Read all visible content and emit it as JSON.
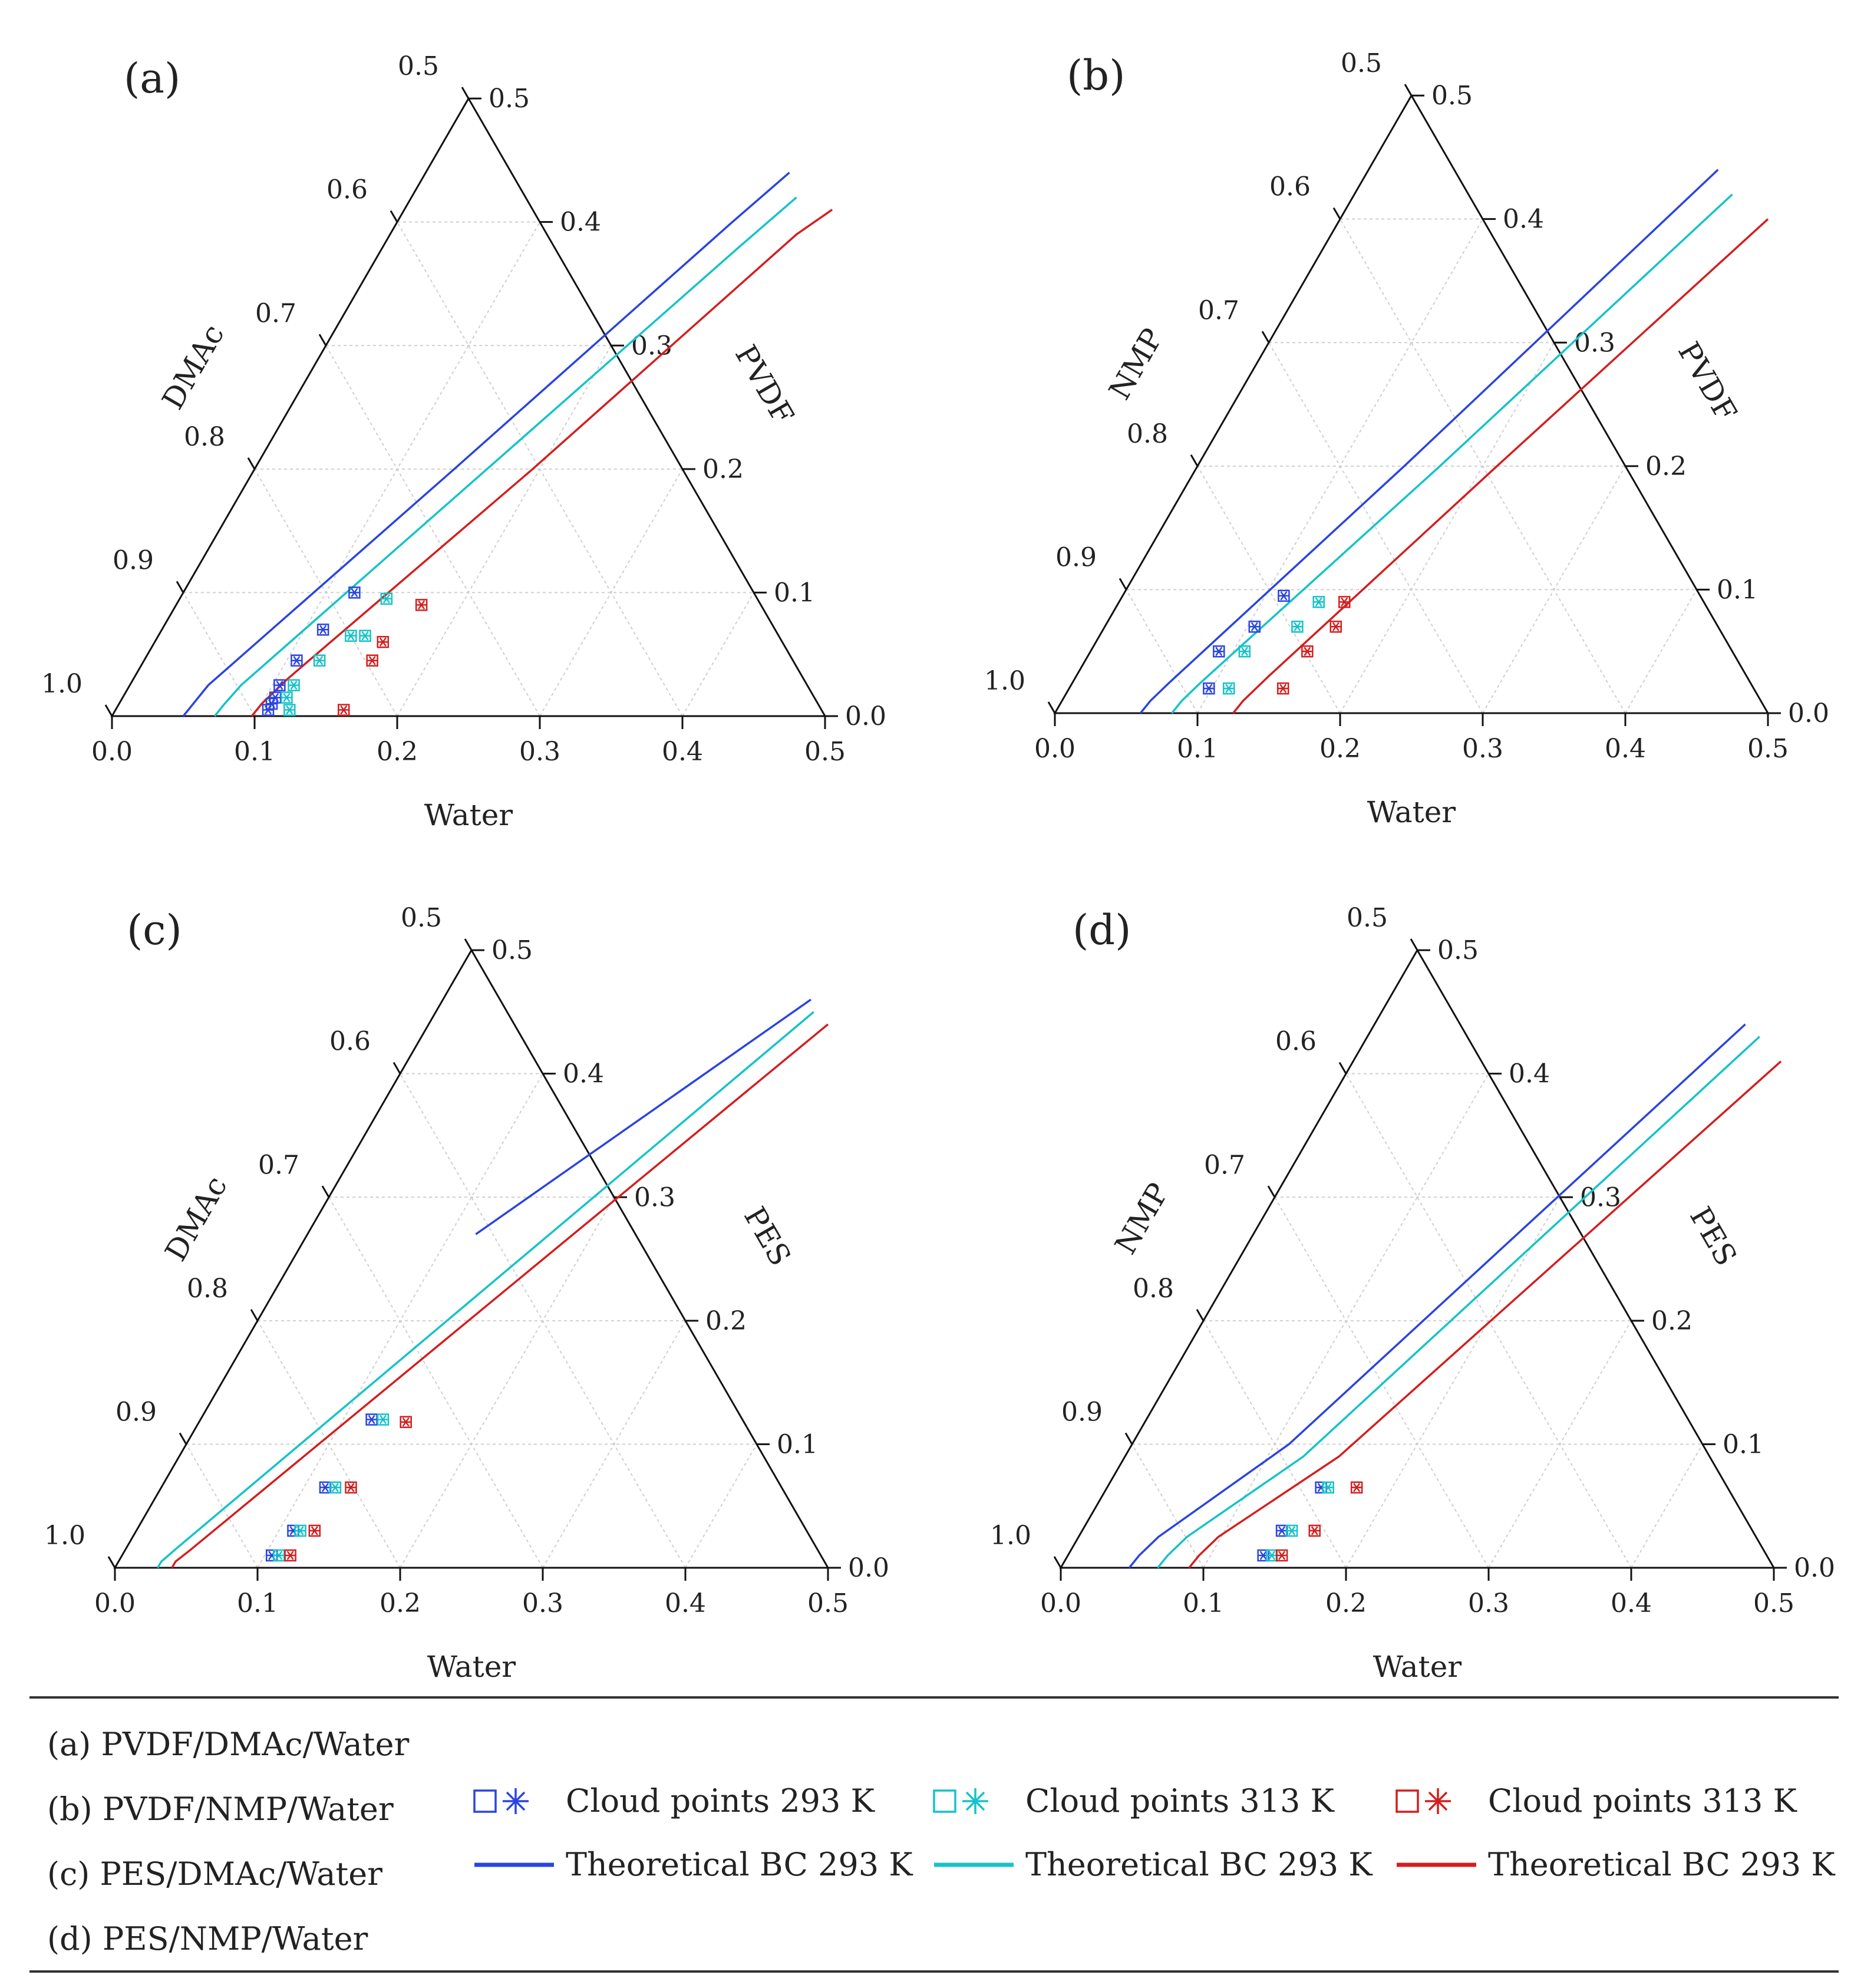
{
  "chart_data": [
    {
      "type": "ternary",
      "panel_label": "(a)",
      "components": {
        "bottom": "Water",
        "left": "DMAc",
        "right": "PVDF"
      },
      "bottom_ticks": [
        "0.0",
        "0.1",
        "0.2",
        "0.3",
        "0.4",
        "0.5"
      ],
      "left_ticks": [
        "1.0",
        "0.9",
        "0.8",
        "0.7",
        "0.6",
        "0.5"
      ],
      "right_ticks": [
        "0.0",
        "0.1",
        "0.2",
        "0.3",
        "0.4",
        "0.5"
      ],
      "series": [
        {
          "name": "Theoretical BC 293 K",
          "color": "#2a44e0",
          "kind": "line",
          "points": [
            [
              0.05,
              0.0
            ],
            [
              0.052,
              0.01
            ],
            [
              0.055,
              0.025
            ],
            [
              0.14,
              0.2
            ],
            [
              0.235,
              0.4
            ],
            [
              0.255,
              0.44
            ]
          ]
        },
        {
          "name": "Theoretical BC 293 K",
          "color": "#14c3c8",
          "kind": "line",
          "points": [
            [
              0.072,
              0.0
            ],
            [
              0.074,
              0.01
            ],
            [
              0.078,
              0.025
            ],
            [
              0.163,
              0.2
            ],
            [
              0.25,
              0.38
            ],
            [
              0.27,
              0.42
            ]
          ]
        },
        {
          "name": "Theoretical BC 293 K",
          "color": "#d41e1e",
          "kind": "line",
          "points": [
            [
              0.098,
              0.0
            ],
            [
              0.1,
              0.01
            ],
            [
              0.108,
              0.03
            ],
            [
              0.195,
              0.2
            ],
            [
              0.285,
              0.39
            ],
            [
              0.3,
              0.41
            ]
          ]
        },
        {
          "name": "Cloud points 293 K",
          "color": "#2a44e0",
          "kind": "points",
          "points": [
            [
              0.107,
              0.005
            ],
            [
              0.107,
              0.01
            ],
            [
              0.107,
              0.015
            ],
            [
              0.105,
              0.025
            ],
            [
              0.107,
              0.045
            ],
            [
              0.113,
              0.07
            ],
            [
              0.12,
              0.1
            ]
          ]
        },
        {
          "name": "Cloud points 313 K",
          "color": "#14c3c8",
          "kind": "points",
          "points": [
            [
              0.122,
              0.005
            ],
            [
              0.115,
              0.015
            ],
            [
              0.115,
              0.025
            ],
            [
              0.123,
              0.045
            ],
            [
              0.135,
              0.065
            ],
            [
              0.145,
              0.065
            ],
            [
              0.145,
              0.095
            ]
          ]
        },
        {
          "name": "Cloud points 313 K",
          "color": "#d41e1e",
          "kind": "points",
          "points": [
            [
              0.16,
              0.005
            ],
            [
              0.16,
              0.045
            ],
            [
              0.16,
              0.06
            ],
            [
              0.172,
              0.09
            ]
          ]
        }
      ]
    },
    {
      "type": "ternary",
      "panel_label": "(b)",
      "components": {
        "bottom": "Water",
        "left": "NMP",
        "right": "PVDF"
      },
      "bottom_ticks": [
        "0.0",
        "0.1",
        "0.2",
        "0.3",
        "0.4",
        "0.5"
      ],
      "left_ticks": [
        "1.0",
        "0.9",
        "0.8",
        "0.7",
        "0.6",
        "0.5"
      ],
      "right_ticks": [
        "0.0",
        "0.1",
        "0.2",
        "0.3",
        "0.4",
        "0.5"
      ],
      "series": [
        {
          "name": "Theoretical BC 293 K",
          "color": "#2a44e0",
          "kind": "line",
          "points": [
            [
              0.06,
              0.0
            ],
            [
              0.062,
              0.01
            ],
            [
              0.068,
              0.025
            ],
            [
              0.145,
              0.2
            ],
            [
              0.245,
              0.44
            ]
          ]
        },
        {
          "name": "Theoretical BC 293 K",
          "color": "#14c3c8",
          "kind": "line",
          "points": [
            [
              0.082,
              0.0
            ],
            [
              0.084,
              0.01
            ],
            [
              0.09,
              0.025
            ],
            [
              0.17,
              0.2
            ],
            [
              0.265,
              0.42
            ]
          ]
        },
        {
          "name": "Theoretical BC 293 K",
          "color": "#d41e1e",
          "kind": "line",
          "points": [
            [
              0.125,
              0.0
            ],
            [
              0.127,
              0.01
            ],
            [
              0.135,
              0.03
            ],
            [
              0.21,
              0.2
            ],
            [
              0.3,
              0.4
            ]
          ]
        },
        {
          "name": "Cloud points 293 K",
          "color": "#2a44e0",
          "kind": "points",
          "points": [
            [
              0.098,
              0.02
            ],
            [
              0.09,
              0.05
            ],
            [
              0.105,
              0.07
            ],
            [
              0.113,
              0.095
            ]
          ]
        },
        {
          "name": "Cloud points 313 K",
          "color": "#14c3c8",
          "kind": "points",
          "points": [
            [
              0.112,
              0.02
            ],
            [
              0.108,
              0.05
            ],
            [
              0.135,
              0.07
            ],
            [
              0.14,
              0.09
            ]
          ]
        },
        {
          "name": "Cloud points 313 K",
          "color": "#d41e1e",
          "kind": "points",
          "points": [
            [
              0.15,
              0.02
            ],
            [
              0.152,
              0.05
            ],
            [
              0.162,
              0.07
            ],
            [
              0.158,
              0.09
            ]
          ]
        }
      ]
    },
    {
      "type": "ternary",
      "panel_label": "(c)",
      "components": {
        "bottom": "Water",
        "left": "DMAc",
        "right": "PES"
      },
      "bottom_ticks": [
        "0.0",
        "0.1",
        "0.2",
        "0.3",
        "0.4",
        "0.5"
      ],
      "left_ticks": [
        "1.0",
        "0.9",
        "0.8",
        "0.7",
        "0.6",
        "0.5"
      ],
      "right_ticks": [
        "0.0",
        "0.1",
        "0.2",
        "0.3",
        "0.4",
        "0.5"
      ],
      "series": [
        {
          "name": "Theoretical BC 293 K",
          "color": "#2a44e0",
          "kind": "line",
          "points": [
            [
              0.118,
              0.27
            ],
            [
              0.258,
              0.46
            ]
          ]
        },
        {
          "name": "Theoretical BC 293 K",
          "color": "#14c3c8",
          "kind": "line",
          "points": [
            [
              0.03,
              0.0
            ],
            [
              0.03,
              0.005
            ],
            [
              0.035,
              0.015
            ],
            [
              0.265,
              0.45
            ]
          ]
        },
        {
          "name": "Theoretical BC 293 K",
          "color": "#d41e1e",
          "kind": "line",
          "points": [
            [
              0.04,
              0.0
            ],
            [
              0.04,
              0.005
            ],
            [
              0.046,
              0.015
            ],
            [
              0.28,
              0.44
            ]
          ]
        },
        {
          "name": "Cloud points 293 K",
          "color": "#2a44e0",
          "kind": "points",
          "points": [
            [
              0.105,
              0.01
            ],
            [
              0.11,
              0.03
            ],
            [
              0.115,
              0.065
            ],
            [
              0.12,
              0.12
            ]
          ]
        },
        {
          "name": "Cloud points 313 K",
          "color": "#14c3c8",
          "kind": "points",
          "points": [
            [
              0.11,
              0.01
            ],
            [
              0.115,
              0.03
            ],
            [
              0.122,
              0.065
            ],
            [
              0.128,
              0.12
            ]
          ]
        },
        {
          "name": "Cloud points 313 K",
          "color": "#d41e1e",
          "kind": "points",
          "points": [
            [
              0.118,
              0.01
            ],
            [
              0.125,
              0.03
            ],
            [
              0.133,
              0.065
            ],
            [
              0.145,
              0.118
            ]
          ]
        }
      ]
    },
    {
      "type": "ternary",
      "panel_label": "(d)",
      "components": {
        "bottom": "Water",
        "left": "NMP",
        "right": "PES"
      },
      "bottom_ticks": [
        "0.0",
        "0.1",
        "0.2",
        "0.3",
        "0.4",
        "0.5"
      ],
      "left_ticks": [
        "1.0",
        "0.9",
        "0.8",
        "0.7",
        "0.6",
        "0.5"
      ],
      "right_ticks": [
        "0.0",
        "0.1",
        "0.2",
        "0.3",
        "0.4",
        "0.5"
      ],
      "series": [
        {
          "name": "Theoretical BC 293 K",
          "color": "#2a44e0",
          "kind": "line",
          "points": [
            [
              0.048,
              0.0
            ],
            [
              0.05,
              0.01
            ],
            [
              0.056,
              0.025
            ],
            [
              0.11,
              0.1
            ],
            [
              0.26,
              0.44
            ]
          ]
        },
        {
          "name": "Theoretical BC 293 K",
          "color": "#14c3c8",
          "kind": "line",
          "points": [
            [
              0.068,
              0.0
            ],
            [
              0.07,
              0.01
            ],
            [
              0.076,
              0.025
            ],
            [
              0.125,
              0.09
            ],
            [
              0.275,
              0.43
            ]
          ]
        },
        {
          "name": "Theoretical BC 293 K",
          "color": "#d41e1e",
          "kind": "line",
          "points": [
            [
              0.09,
              0.0
            ],
            [
              0.092,
              0.01
            ],
            [
              0.098,
              0.025
            ],
            [
              0.15,
              0.09
            ],
            [
              0.3,
              0.41
            ]
          ]
        },
        {
          "name": "Cloud points 293 K",
          "color": "#2a44e0",
          "kind": "points",
          "points": [
            [
              0.137,
              0.01
            ],
            [
              0.14,
              0.03
            ],
            [
              0.15,
              0.065
            ]
          ]
        },
        {
          "name": "Cloud points 313 K",
          "color": "#14c3c8",
          "kind": "points",
          "points": [
            [
              0.143,
              0.01
            ],
            [
              0.147,
              0.03
            ],
            [
              0.155,
              0.065
            ]
          ]
        },
        {
          "name": "Cloud points 313 K",
          "color": "#d41e1e",
          "kind": "points",
          "points": [
            [
              0.15,
              0.01
            ],
            [
              0.163,
              0.03
            ],
            [
              0.175,
              0.065
            ]
          ]
        }
      ]
    }
  ],
  "legend": {
    "systems": [
      "(a) PVDF/DMAc/Water",
      "(b) PVDF/NMP/Water",
      "(c) PES/DMAc/Water",
      "(d) PES/NMP/Water"
    ],
    "entries": [
      {
        "kind": "markers",
        "color": "#2a44e0",
        "label": "Cloud points 293 K"
      },
      {
        "kind": "markers",
        "color": "#14c3c8",
        "label": "Cloud points 313 K"
      },
      {
        "kind": "markers",
        "color": "#d41e1e",
        "label": "Cloud points 313 K"
      },
      {
        "kind": "line",
        "color": "#2a44e0",
        "label": "Theoretical BC 293 K"
      },
      {
        "kind": "line",
        "color": "#14c3c8",
        "label": "Theoretical BC 293 K"
      },
      {
        "kind": "line",
        "color": "#d41e1e",
        "label": "Theoretical BC 293 K"
      }
    ]
  }
}
